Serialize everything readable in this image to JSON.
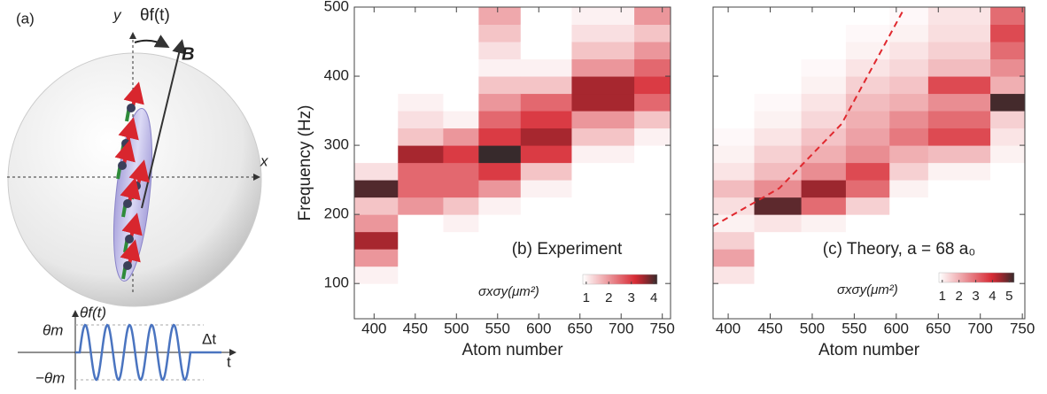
{
  "diagram": {
    "panel": "(a)",
    "y_axis": "y",
    "angle": "θf(t)",
    "field": "B",
    "x_axis": "x",
    "inset": {
      "amp": "θm",
      "angle": "θf(t)",
      "duration": "Δt",
      "time": "t",
      "neg_amp": "−θm"
    }
  },
  "chart_data": [
    {
      "type": "heatmap",
      "label": "(b) Experiment",
      "colorbar_label": "σxσy(μm²)",
      "xlabel": "Atom number",
      "ylabel": "Frequency (Hz)",
      "x_edges": [
        376,
        429,
        484,
        527,
        578,
        640,
        716,
        760
      ],
      "y_edges": [
        50,
        75,
        100,
        125,
        150,
        175,
        200,
        225,
        250,
        275,
        300,
        325,
        350,
        375,
        400,
        425,
        450,
        475,
        500
      ],
      "z": [
        [
          0.5,
          0.6,
          1,
          2,
          3.5,
          2,
          1.5,
          4,
          1.2,
          0.8,
          0.5,
          0.4,
          0.3,
          0.3,
          0.3,
          0.4,
          0.5,
          0.3
        ],
        [
          0.2,
          0.2,
          0.2,
          0.2,
          0.3,
          0.5,
          2,
          2.5,
          2.5,
          3.5,
          1.5,
          1.2,
          1,
          0.8,
          0.6,
          0.5,
          0.4,
          0.3
        ],
        [
          0.5,
          0.3,
          0.2,
          0.5,
          0.8,
          1,
          1.5,
          2.5,
          2.5,
          3,
          2,
          1,
          0.6,
          0.5,
          0.3,
          0.3,
          0.2,
          0.2
        ],
        [
          0.2,
          0.2,
          0.2,
          0.2,
          0.3,
          0.5,
          1,
          2,
          3,
          4.5,
          3,
          2.5,
          2,
          1.5,
          1,
          1.2,
          1.5,
          1.8
        ],
        [
          0.1,
          0.1,
          0.1,
          0.2,
          0.3,
          0.5,
          0.8,
          1,
          1.5,
          3,
          3.5,
          3,
          2.5,
          1.5,
          1,
          0.8,
          0.7,
          0.6
        ],
        [
          0.1,
          0.1,
          0.1,
          0.1,
          0.2,
          0.2,
          0.3,
          0.5,
          0.8,
          1,
          1.5,
          2,
          3.5,
          3.5,
          2,
          1.5,
          1.2,
          1
        ],
        [
          0.1,
          0.1,
          0.1,
          0.1,
          0.1,
          0.2,
          0.2,
          0.3,
          0.5,
          0.8,
          1,
          1.5,
          2.5,
          3,
          2.5,
          2,
          1.5,
          2
        ]
      ],
      "xlim": [
        376,
        760
      ],
      "ylim": [
        49,
        500
      ],
      "xticks": [
        400,
        450,
        500,
        550,
        600,
        650,
        700,
        750
      ],
      "yticks": [
        100,
        200,
        300,
        400,
        500
      ],
      "ytick_labels": true,
      "clim": [
        0.85,
        4.15
      ],
      "cticks": [
        1,
        2,
        3,
        4
      ]
    },
    {
      "type": "heatmap",
      "label": "(c) Theory, a = 68 a₀",
      "colorbar_label": "σxσy(μm²)",
      "xlabel": "Atom number",
      "x_edges": [
        382,
        431,
        487,
        540,
        592,
        638,
        712,
        753
      ],
      "y_edges": [
        50,
        75,
        100,
        125,
        150,
        175,
        200,
        225,
        250,
        275,
        300,
        325,
        350,
        375,
        400,
        425,
        450,
        475,
        500
      ],
      "z": [
        [
          0.3,
          0.5,
          1.2,
          2.2,
          1.5,
          1,
          1.3,
          1.8,
          1.2,
          1,
          0.9,
          0.8,
          0.7,
          0.6,
          0.5,
          0.4,
          0.4,
          0.3
        ],
        [
          0.3,
          0.3,
          0.3,
          0.5,
          0.8,
          1.2,
          5,
          2.5,
          1.8,
          1.5,
          1.2,
          1,
          0.9,
          0.8,
          0.7,
          0.6,
          0.5,
          0.4
        ],
        [
          0.3,
          0.3,
          0.3,
          0.3,
          0.3,
          1,
          3,
          4.5,
          2.5,
          2,
          1.7,
          1.4,
          1.2,
          1,
          0.9,
          0.8,
          0.7,
          0.6
        ],
        [
          0.3,
          0.3,
          0.3,
          0.3,
          0.3,
          0.3,
          1.5,
          3,
          3.5,
          2.5,
          2.2,
          2,
          1.8,
          1.5,
          1.2,
          1,
          0.9,
          0.8
        ],
        [
          0.3,
          0.3,
          0.3,
          0.3,
          0.3,
          0.3,
          0.3,
          1,
          1.5,
          2,
          2.8,
          2.5,
          2,
          1.7,
          1.4,
          1.2,
          1,
          0.9
        ],
        [
          0.3,
          0.3,
          0.3,
          0.3,
          0.3,
          0.3,
          0.3,
          0.3,
          1,
          1.8,
          3.5,
          3,
          2.5,
          3.5,
          1.8,
          1.5,
          1.3,
          1.2
        ],
        [
          0.3,
          0.3,
          0.3,
          0.3,
          0.3,
          0.3,
          0.3,
          0.3,
          0.3,
          1,
          1.2,
          1.5,
          5.2,
          2,
          2.5,
          3,
          3.5,
          3
        ]
      ],
      "xlim": [
        382,
        753
      ],
      "ylim": [
        49,
        500
      ],
      "xticks": [
        400,
        450,
        500,
        550,
        600,
        650,
        700,
        750
      ],
      "yticks": [
        100,
        200,
        300,
        400,
        500
      ],
      "ytick_labels": false,
      "clim": [
        0.8,
        5.3
      ],
      "cticks": [
        1,
        2,
        3,
        4,
        5
      ],
      "curve": {
        "x": [
          382,
          461,
          535,
          609
        ],
        "y": [
          183,
          238,
          331,
          497
        ],
        "color": "#e0282e"
      }
    }
  ]
}
